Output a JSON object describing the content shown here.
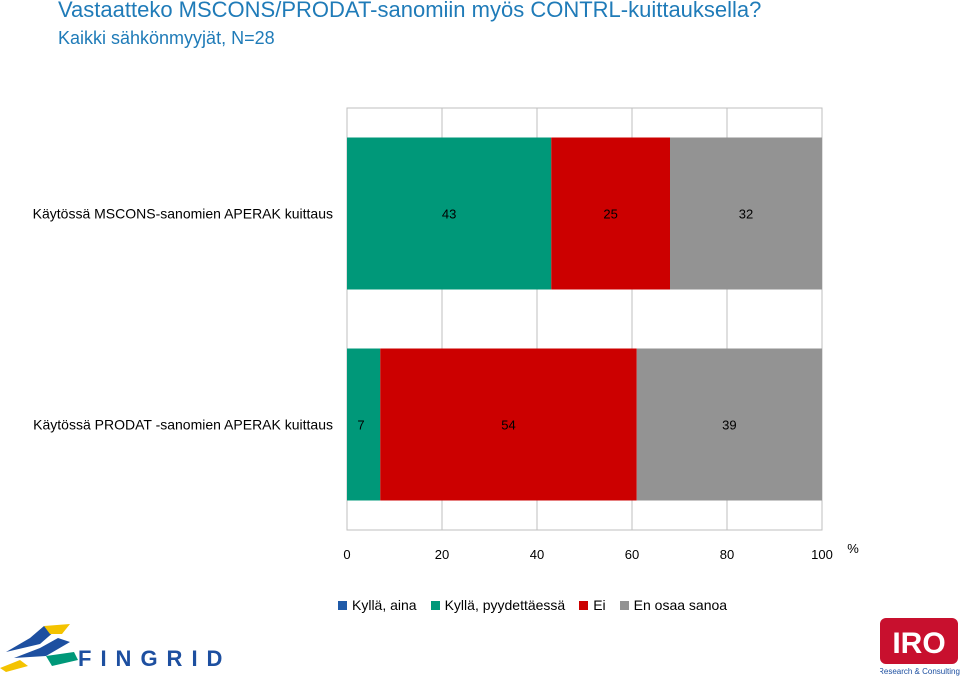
{
  "chart_data": {
    "type": "stacked-bar-horizontal",
    "title": "Vastaatteko MSCONS/PRODAT-sanomiin myös CONTRL-kuittauksella?",
    "subtitle": "Kaikki sähkönmyyjät, N=28",
    "categories": [
      "Käytössä MSCONS-sanomien APERAK kuittaus",
      "Käytössä PRODAT -sanomien APERAK kuittaus"
    ],
    "series": [
      {
        "name": "Kyllä, aina",
        "color": "#1f5aa8",
        "values": [
          0,
          0
        ]
      },
      {
        "name": "Kyllä, pyydettäessä",
        "color": "#009879",
        "values": [
          43,
          7
        ]
      },
      {
        "name": "Ei",
        "color": "#cc0000",
        "values": [
          25,
          54
        ]
      },
      {
        "name": "En osaa sanoa",
        "color": "#939393",
        "values": [
          32,
          39
        ]
      }
    ],
    "xlim": [
      0,
      100
    ],
    "xticks": [
      "0",
      "20",
      "40",
      "60",
      "80",
      "100"
    ],
    "xlabel": "%",
    "legend": "bottom"
  },
  "logos": {
    "left": "FINGRID",
    "right_mark": "IRO",
    "right_caption": "Research & Consulting"
  }
}
